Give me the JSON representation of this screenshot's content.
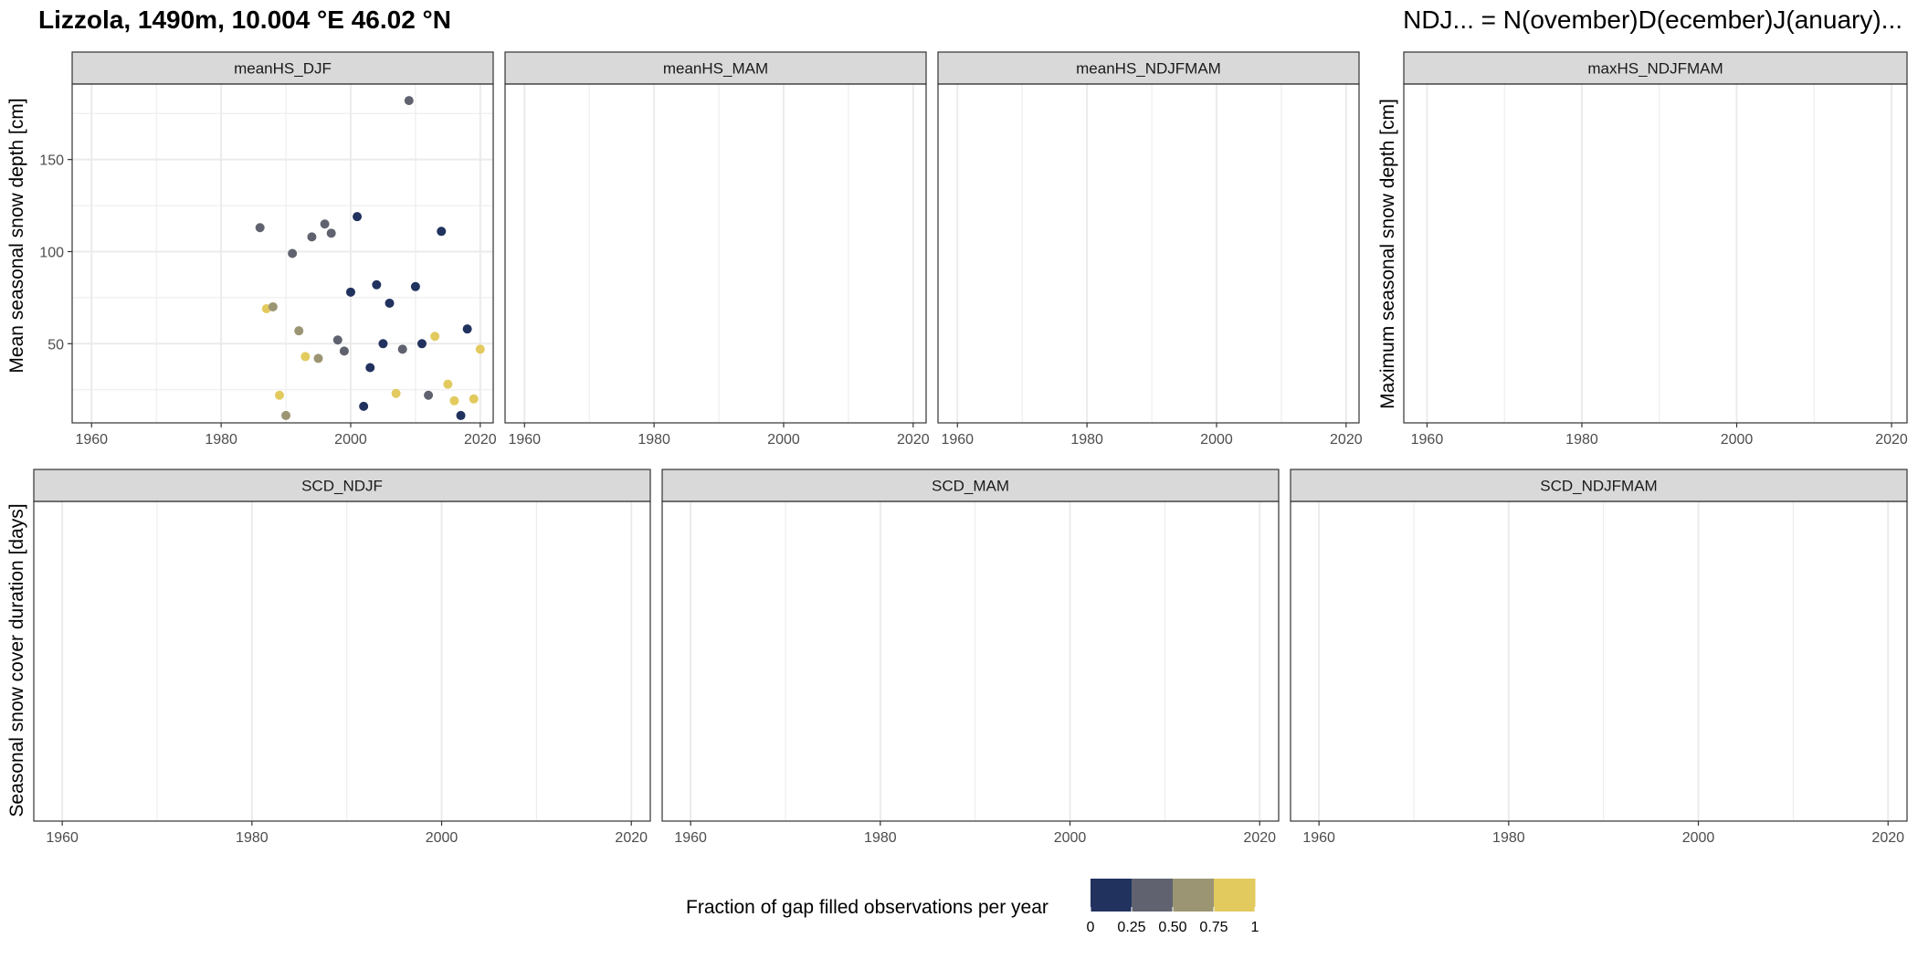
{
  "header": {
    "title": "Lizzola, 1490m, 10.004 °E 46.02 °N",
    "note": "NDJ... = N(ovember)D(ecember)J(anuary)..."
  },
  "y_axis_labels": {
    "mean": "Mean seasonal snow depth [cm]",
    "max": "Maximum seasonal snow depth [cm]",
    "scd": "Seasonal snow cover duration [days]"
  },
  "legend": {
    "title": "Fraction of gap filled observations per year",
    "tick_labels": [
      "0",
      "0.25",
      "0.50",
      "0.75",
      "1"
    ],
    "colors": [
      "#21325E",
      "#60636F",
      "#9B9574",
      "#E2CA5F"
    ]
  },
  "chart_data": [
    {
      "type": "scatter",
      "panel": "meanHS_DJF",
      "xlim": [
        1957,
        2022
      ],
      "ylim": [
        7,
        191
      ],
      "x_ticks": [
        1960,
        1980,
        2000,
        2020
      ],
      "y_ticks": [
        50,
        100,
        150
      ],
      "grid": true,
      "color_variable": "Fraction of gap filled observations per year",
      "points": [
        {
          "x": 1986,
          "y": 113,
          "fraction": 0.4
        },
        {
          "x": 1987,
          "y": 69,
          "fraction": 0.85
        },
        {
          "x": 1988,
          "y": 70,
          "fraction": 0.55
        },
        {
          "x": 1989,
          "y": 22,
          "fraction": 0.9
        },
        {
          "x": 1990,
          "y": 11,
          "fraction": 0.6
        },
        {
          "x": 1991,
          "y": 99,
          "fraction": 0.4
        },
        {
          "x": 1992,
          "y": 57,
          "fraction": 0.6
        },
        {
          "x": 1993,
          "y": 43,
          "fraction": 0.9
        },
        {
          "x": 1994,
          "y": 108,
          "fraction": 0.4
        },
        {
          "x": 1995,
          "y": 42,
          "fraction": 0.6
        },
        {
          "x": 1996,
          "y": 115,
          "fraction": 0.4
        },
        {
          "x": 1997,
          "y": 110,
          "fraction": 0.4
        },
        {
          "x": 1998,
          "y": 52,
          "fraction": 0.4
        },
        {
          "x": 1999,
          "y": 46,
          "fraction": 0.4
        },
        {
          "x": 2000,
          "y": 78,
          "fraction": 0.1
        },
        {
          "x": 2001,
          "y": 119,
          "fraction": 0.1
        },
        {
          "x": 2002,
          "y": 16,
          "fraction": 0.1
        },
        {
          "x": 2003,
          "y": 37,
          "fraction": 0.1
        },
        {
          "x": 2004,
          "y": 82,
          "fraction": 0.1
        },
        {
          "x": 2005,
          "y": 50,
          "fraction": 0.1
        },
        {
          "x": 2006,
          "y": 72,
          "fraction": 0.1
        },
        {
          "x": 2007,
          "y": 23,
          "fraction": 0.9
        },
        {
          "x": 2008,
          "y": 47,
          "fraction": 0.4
        },
        {
          "x": 2009,
          "y": 182,
          "fraction": 0.4
        },
        {
          "x": 2010,
          "y": 81,
          "fraction": 0.1
        },
        {
          "x": 2011,
          "y": 50,
          "fraction": 0.1
        },
        {
          "x": 2012,
          "y": 22,
          "fraction": 0.4
        },
        {
          "x": 2013,
          "y": 54,
          "fraction": 0.9
        },
        {
          "x": 2014,
          "y": 111,
          "fraction": 0.1
        },
        {
          "x": 2015,
          "y": 28,
          "fraction": 0.9
        },
        {
          "x": 2016,
          "y": 19,
          "fraction": 0.9
        },
        {
          "x": 2017,
          "y": 11,
          "fraction": 0.1
        },
        {
          "x": 2018,
          "y": 58,
          "fraction": 0.1
        },
        {
          "x": 2019,
          "y": 20,
          "fraction": 0.9
        },
        {
          "x": 2020,
          "y": 47,
          "fraction": 0.9
        }
      ]
    },
    {
      "type": "scatter",
      "panel": "meanHS_MAM",
      "xlim": [
        1957,
        2022
      ],
      "ylim": [
        7,
        191
      ],
      "x_ticks": [
        1960,
        1980,
        2000,
        2020
      ],
      "grid": true,
      "points": []
    },
    {
      "type": "scatter",
      "panel": "meanHS_NDJFMAM",
      "xlim": [
        1957,
        2022
      ],
      "ylim": [
        7,
        191
      ],
      "x_ticks": [
        1960,
        1980,
        2000,
        2020
      ],
      "grid": true,
      "points": []
    },
    {
      "type": "scatter",
      "panel": "maxHS_NDJFMAM",
      "xlim": [
        1957,
        2022
      ],
      "x_ticks": [
        1960,
        1980,
        2000,
        2020
      ],
      "grid": true,
      "points": []
    },
    {
      "type": "scatter",
      "panel": "SCD_NDJF",
      "xlim": [
        1957,
        2022
      ],
      "x_ticks": [
        1960,
        1980,
        2000,
        2020
      ],
      "grid": true,
      "points": []
    },
    {
      "type": "scatter",
      "panel": "SCD_MAM",
      "xlim": [
        1957,
        2022
      ],
      "x_ticks": [
        1960,
        1980,
        2000,
        2020
      ],
      "grid": true,
      "points": []
    },
    {
      "type": "scatter",
      "panel": "SCD_NDJFMAM",
      "xlim": [
        1957,
        2022
      ],
      "x_ticks": [
        1960,
        1980,
        2000,
        2020
      ],
      "grid": true,
      "points": []
    }
  ]
}
